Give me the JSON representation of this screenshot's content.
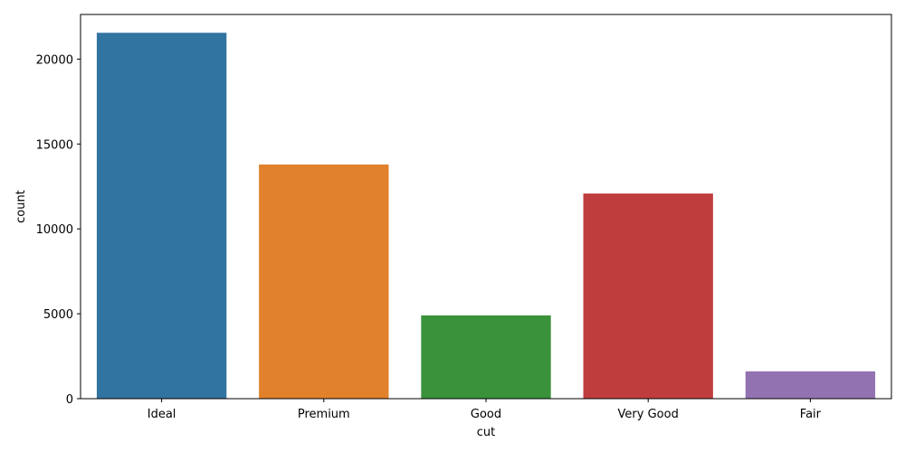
{
  "chart_data": {
    "type": "bar",
    "title": "",
    "xlabel": "cut",
    "ylabel": "count",
    "categories": [
      "Ideal",
      "Premium",
      "Good",
      "Very Good",
      "Fair"
    ],
    "values": [
      21551,
      13791,
      4906,
      12082,
      1610
    ],
    "colors": [
      "#3274a1",
      "#e1812c",
      "#3a923a",
      "#c03d3e",
      "#9372b2"
    ],
    "ylim": [
      0,
      22630
    ],
    "yticks": [
      0,
      5000,
      10000,
      15000,
      20000
    ],
    "grid": false,
    "legend": "none"
  }
}
